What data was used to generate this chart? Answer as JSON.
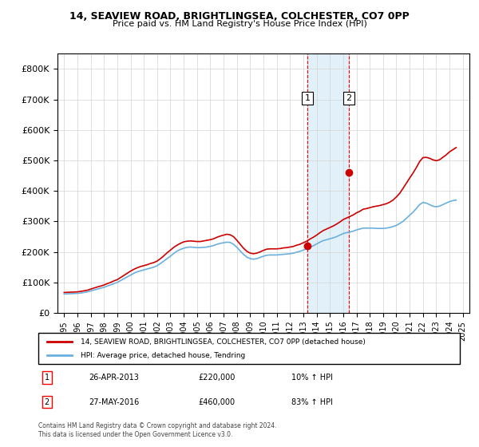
{
  "title": "14, SEAVIEW ROAD, BRIGHTLINGSEA, COLCHESTER, CO7 0PP",
  "subtitle": "Price paid vs. HM Land Registry's House Price Index (HPI)",
  "legend_line1": "14, SEAVIEW ROAD, BRIGHTLINGSEA, COLCHESTER, CO7 0PP (detached house)",
  "legend_line2": "HPI: Average price, detached house, Tendring",
  "footnote1": "Contains HM Land Registry data © Crown copyright and database right 2024.",
  "footnote2": "This data is licensed under the Open Government Licence v3.0.",
  "annotation1_label": "1",
  "annotation1_date": "26-APR-2013",
  "annotation1_price": "£220,000",
  "annotation1_hpi": "10% ↑ HPI",
  "annotation2_label": "2",
  "annotation2_date": "27-MAY-2016",
  "annotation2_price": "£460,000",
  "annotation2_hpi": "83% ↑ HPI",
  "purchase1_x": 2013.32,
  "purchase1_y": 220000,
  "purchase2_x": 2016.41,
  "purchase2_y": 460000,
  "hpi_color": "#6ab0de",
  "price_color": "#cc0000",
  "shade_color": "#d0e8f5",
  "ylim": [
    0,
    850000
  ],
  "xlim": [
    1994.5,
    2025.5
  ],
  "yticks": [
    0,
    100000,
    200000,
    300000,
    400000,
    500000,
    600000,
    700000,
    800000
  ],
  "xtick_years": [
    1995,
    1996,
    1997,
    1998,
    1999,
    2000,
    2001,
    2002,
    2003,
    2004,
    2005,
    2006,
    2007,
    2008,
    2009,
    2010,
    2011,
    2012,
    2013,
    2014,
    2015,
    2016,
    2017,
    2018,
    2019,
    2020,
    2021,
    2022,
    2023,
    2024,
    2025
  ],
  "hpi_data_x": [
    1995,
    1995.25,
    1995.5,
    1995.75,
    1996,
    1996.25,
    1996.5,
    1996.75,
    1997,
    1997.25,
    1997.5,
    1997.75,
    1998,
    1998.25,
    1998.5,
    1998.75,
    1999,
    1999.25,
    1999.5,
    1999.75,
    2000,
    2000.25,
    2000.5,
    2000.75,
    2001,
    2001.25,
    2001.5,
    2001.75,
    2002,
    2002.25,
    2002.5,
    2002.75,
    2003,
    2003.25,
    2003.5,
    2003.75,
    2004,
    2004.25,
    2004.5,
    2004.75,
    2005,
    2005.25,
    2005.5,
    2005.75,
    2006,
    2006.25,
    2006.5,
    2006.75,
    2007,
    2007.25,
    2007.5,
    2007.75,
    2008,
    2008.25,
    2008.5,
    2008.75,
    2009,
    2009.25,
    2009.5,
    2009.75,
    2010,
    2010.25,
    2010.5,
    2010.75,
    2011,
    2011.25,
    2011.5,
    2011.75,
    2012,
    2012.25,
    2012.5,
    2012.75,
    2013,
    2013.25,
    2013.5,
    2013.75,
    2014,
    2014.25,
    2014.5,
    2014.75,
    2015,
    2015.25,
    2015.5,
    2015.75,
    2016,
    2016.25,
    2016.5,
    2016.75,
    2017,
    2017.25,
    2017.5,
    2017.75,
    2018,
    2018.25,
    2018.5,
    2018.75,
    2019,
    2019.25,
    2019.5,
    2019.75,
    2020,
    2020.25,
    2020.5,
    2020.75,
    2021,
    2021.25,
    2021.5,
    2021.75,
    2022,
    2022.25,
    2022.5,
    2022.75,
    2023,
    2023.25,
    2023.5,
    2023.75,
    2024,
    2024.25,
    2024.5
  ],
  "hpi_data_y": [
    62000,
    62500,
    63000,
    63500,
    64000,
    65000,
    67000,
    69000,
    72000,
    75000,
    78000,
    81000,
    84000,
    88000,
    92000,
    96000,
    100000,
    106000,
    112000,
    118000,
    124000,
    130000,
    135000,
    138000,
    141000,
    144000,
    147000,
    150000,
    155000,
    162000,
    170000,
    178000,
    186000,
    195000,
    203000,
    208000,
    212000,
    215000,
    216000,
    215000,
    214000,
    214000,
    215000,
    216000,
    218000,
    221000,
    225000,
    228000,
    230000,
    232000,
    231000,
    225000,
    215000,
    203000,
    192000,
    183000,
    178000,
    176000,
    178000,
    182000,
    186000,
    189000,
    190000,
    190000,
    190000,
    191000,
    192000,
    193000,
    194000,
    196000,
    199000,
    202000,
    206000,
    210000,
    215000,
    220000,
    226000,
    232000,
    237000,
    240000,
    243000,
    246000,
    250000,
    255000,
    260000,
    263000,
    265000,
    268000,
    272000,
    275000,
    278000,
    278000,
    278000,
    278000,
    277000,
    277000,
    277000,
    278000,
    280000,
    283000,
    287000,
    293000,
    300000,
    310000,
    320000,
    330000,
    342000,
    355000,
    362000,
    360000,
    355000,
    350000,
    348000,
    350000,
    355000,
    360000,
    365000,
    368000,
    370000
  ],
  "price_data_x": [
    1995,
    1995.25,
    1995.5,
    1995.75,
    1996,
    1996.25,
    1996.5,
    1996.75,
    1997,
    1997.25,
    1997.5,
    1997.75,
    1998,
    1998.25,
    1998.5,
    1998.75,
    1999,
    1999.25,
    1999.5,
    1999.75,
    2000,
    2000.25,
    2000.5,
    2000.75,
    2001,
    2001.25,
    2001.5,
    2001.75,
    2002,
    2002.25,
    2002.5,
    2002.75,
    2003,
    2003.25,
    2003.5,
    2003.75,
    2004,
    2004.25,
    2004.5,
    2004.75,
    2005,
    2005.25,
    2005.5,
    2005.75,
    2006,
    2006.25,
    2006.5,
    2006.75,
    2007,
    2007.25,
    2007.5,
    2007.75,
    2008,
    2008.25,
    2008.5,
    2008.75,
    2009,
    2009.25,
    2009.5,
    2009.75,
    2010,
    2010.25,
    2010.5,
    2010.75,
    2011,
    2011.25,
    2011.5,
    2011.75,
    2012,
    2012.25,
    2012.5,
    2012.75,
    2013,
    2013.25,
    2013.5,
    2013.75,
    2014,
    2014.25,
    2014.5,
    2014.75,
    2015,
    2015.25,
    2015.5,
    2015.75,
    2016,
    2016.25,
    2016.5,
    2016.75,
    2017,
    2017.25,
    2017.5,
    2017.75,
    2018,
    2018.25,
    2018.5,
    2018.75,
    2019,
    2019.25,
    2019.5,
    2019.75,
    2020,
    2020.25,
    2020.5,
    2020.75,
    2021,
    2021.25,
    2021.5,
    2021.75,
    2022,
    2022.25,
    2022.5,
    2022.75,
    2023,
    2023.25,
    2023.5,
    2023.75,
    2024,
    2024.25,
    2024.5
  ],
  "price_data_y": [
    67000,
    67500,
    68000,
    68500,
    69000,
    70500,
    72500,
    74500,
    78000,
    81500,
    85000,
    88000,
    91500,
    96000,
    100000,
    105000,
    109000,
    116000,
    123000,
    130000,
    137000,
    143000,
    148000,
    152000,
    155000,
    158000,
    162000,
    165000,
    170000,
    178000,
    187000,
    197000,
    206000,
    215000,
    222000,
    228000,
    233000,
    235000,
    236000,
    235000,
    234000,
    234000,
    236000,
    238000,
    240000,
    243000,
    248000,
    252000,
    255000,
    258000,
    256000,
    250000,
    238000,
    225000,
    212000,
    202000,
    196000,
    194000,
    196000,
    200000,
    205000,
    209000,
    210000,
    210000,
    210000,
    211000,
    213000,
    214000,
    216000,
    218000,
    222000,
    225000,
    230000,
    235000,
    242000,
    248000,
    255000,
    263000,
    270000,
    275000,
    280000,
    285000,
    291000,
    298000,
    306000,
    311000,
    316000,
    321000,
    328000,
    333000,
    340000,
    342000,
    345000,
    348000,
    350000,
    352000,
    355000,
    358000,
    363000,
    370000,
    380000,
    392000,
    408000,
    425000,
    442000,
    458000,
    476000,
    496000,
    509000,
    510000,
    507000,
    502000,
    499000,
    502000,
    510000,
    518000,
    528000,
    535000,
    542000
  ],
  "vline1_x": 2013.32,
  "vline2_x": 2016.41,
  "shade_x1": 2013.32,
  "shade_x2": 2016.41
}
